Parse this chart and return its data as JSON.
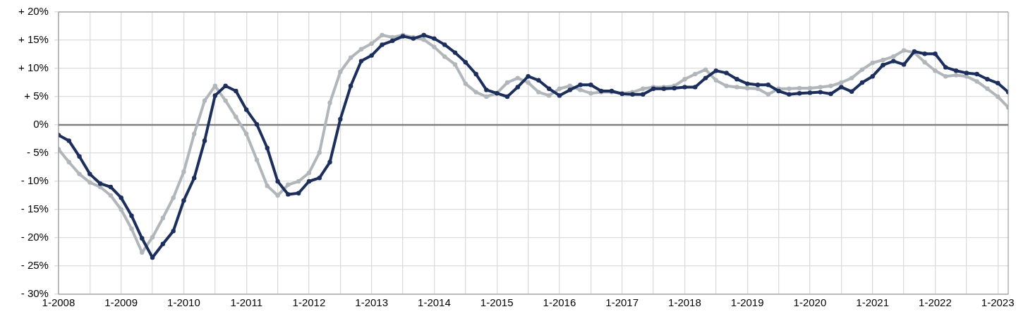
{
  "chart_data": {
    "type": "line",
    "x": [
      "2008-01",
      "2008-03",
      "2008-05",
      "2008-07",
      "2008-09",
      "2008-11",
      "2009-01",
      "2009-03",
      "2009-05",
      "2009-07",
      "2009-09",
      "2009-11",
      "2010-01",
      "2010-03",
      "2010-05",
      "2010-07",
      "2010-09",
      "2010-11",
      "2011-01",
      "2011-03",
      "2011-05",
      "2011-07",
      "2011-09",
      "2011-11",
      "2012-01",
      "2012-03",
      "2012-05",
      "2012-07",
      "2012-09",
      "2012-11",
      "2013-01",
      "2013-03",
      "2013-05",
      "2013-07",
      "2013-09",
      "2013-11",
      "2014-01",
      "2014-03",
      "2014-05",
      "2014-07",
      "2014-09",
      "2014-11",
      "2015-01",
      "2015-03",
      "2015-05",
      "2015-07",
      "2015-09",
      "2015-11",
      "2016-01",
      "2016-03",
      "2016-05",
      "2016-07",
      "2016-09",
      "2016-11",
      "2017-01",
      "2017-03",
      "2017-05",
      "2017-07",
      "2017-09",
      "2017-11",
      "2018-01",
      "2018-03",
      "2018-05",
      "2018-07",
      "2018-09",
      "2018-11",
      "2019-01",
      "2019-03",
      "2019-05",
      "2019-07",
      "2019-09",
      "2019-11",
      "2020-01",
      "2020-03",
      "2020-05",
      "2020-07",
      "2020-09",
      "2020-11",
      "2021-01",
      "2021-03",
      "2021-05",
      "2021-07",
      "2021-09",
      "2021-11",
      "2022-01",
      "2022-03",
      "2022-05",
      "2022-07",
      "2022-09",
      "2022-11",
      "2023-01",
      "2023-03"
    ],
    "series": [
      {
        "color": "#b1b6bb",
        "values": [
          -4.3,
          -6.6,
          -8.7,
          -10.2,
          -11.0,
          -12.5,
          -15.0,
          -18.4,
          -22.6,
          -19.9,
          -16.5,
          -12.9,
          -8.3,
          -1.6,
          4.3,
          6.9,
          4.3,
          1.4,
          -1.6,
          -6.2,
          -10.8,
          -12.5,
          -10.6,
          -10.0,
          -8.5,
          -4.9,
          3.9,
          9.4,
          11.9,
          13.4,
          14.4,
          15.9,
          15.5,
          15.9,
          15.5,
          15.1,
          13.8,
          12.1,
          10.7,
          7.3,
          5.8,
          5.0,
          5.6,
          7.5,
          8.3,
          7.5,
          5.8,
          5.2,
          6.4,
          6.9,
          6.2,
          5.6,
          5.8,
          5.8,
          5.6,
          5.8,
          6.4,
          6.7,
          6.7,
          6.9,
          8.1,
          9.0,
          9.8,
          7.9,
          6.9,
          6.7,
          6.5,
          6.4,
          5.4,
          6.4,
          6.4,
          6.5,
          6.5,
          6.7,
          6.9,
          7.5,
          8.3,
          9.8,
          11.0,
          11.5,
          12.1,
          13.2,
          12.8,
          11.1,
          9.6,
          8.6,
          8.8,
          8.6,
          7.7,
          6.4,
          5.0,
          3.1
        ]
      },
      {
        "color": "#1c2e5c",
        "values": [
          -1.8,
          -2.8,
          -5.6,
          -8.7,
          -10.4,
          -11.0,
          -12.9,
          -16.1,
          -20.1,
          -23.5,
          -21.1,
          -18.8,
          -13.4,
          -9.4,
          -2.8,
          5.2,
          6.9,
          6.0,
          2.7,
          0.1,
          -4.1,
          -10.0,
          -12.3,
          -12.1,
          -10.0,
          -9.4,
          -6.6,
          1.0,
          6.9,
          11.3,
          12.3,
          14.2,
          14.9,
          15.7,
          15.3,
          15.9,
          15.3,
          14.2,
          12.8,
          11.1,
          9.0,
          6.2,
          5.6,
          5.0,
          6.7,
          8.6,
          7.9,
          6.4,
          5.2,
          6.2,
          7.1,
          7.1,
          6.0,
          6.0,
          5.5,
          5.4,
          5.4,
          6.4,
          6.4,
          6.5,
          6.7,
          6.7,
          8.3,
          9.6,
          9.2,
          8.1,
          7.3,
          7.1,
          7.1,
          6.0,
          5.4,
          5.6,
          5.7,
          5.8,
          5.5,
          6.7,
          5.9,
          7.5,
          8.6,
          10.6,
          11.3,
          10.7,
          13.0,
          12.6,
          12.6,
          10.2,
          9.6,
          9.2,
          9.0,
          8.1,
          7.4,
          5.8
        ]
      }
    ],
    "xlim": [
      "2008-01",
      "2023-03"
    ],
    "xticks": [
      {
        "value": "2008-01",
        "label": "1-2008"
      },
      {
        "value": "2008-07",
        "label": null
      },
      {
        "value": "2009-01",
        "label": "1-2009"
      },
      {
        "value": "2009-07",
        "label": null
      },
      {
        "value": "2010-01",
        "label": "1-2010"
      },
      {
        "value": "2010-07",
        "label": null
      },
      {
        "value": "2011-01",
        "label": "1-2011"
      },
      {
        "value": "2011-07",
        "label": null
      },
      {
        "value": "2012-01",
        "label": "1-2012"
      },
      {
        "value": "2012-07",
        "label": null
      },
      {
        "value": "2013-01",
        "label": "1-2013"
      },
      {
        "value": "2013-07",
        "label": null
      },
      {
        "value": "2014-01",
        "label": "1-2014"
      },
      {
        "value": "2014-07",
        "label": null
      },
      {
        "value": "2015-01",
        "label": "1-2015"
      },
      {
        "value": "2015-07",
        "label": null
      },
      {
        "value": "2016-01",
        "label": "1-2016"
      },
      {
        "value": "2016-07",
        "label": null
      },
      {
        "value": "2017-01",
        "label": "1-2017"
      },
      {
        "value": "2017-07",
        "label": null
      },
      {
        "value": "2018-01",
        "label": "1-2018"
      },
      {
        "value": "2018-07",
        "label": null
      },
      {
        "value": "2019-01",
        "label": "1-2019"
      },
      {
        "value": "2019-07",
        "label": null
      },
      {
        "value": "2020-01",
        "label": "1-2020"
      },
      {
        "value": "2020-07",
        "label": null
      },
      {
        "value": "2021-01",
        "label": "1-2021"
      },
      {
        "value": "2021-07",
        "label": null
      },
      {
        "value": "2022-01",
        "label": "1-2022"
      },
      {
        "value": "2022-07",
        "label": null
      },
      {
        "value": "2023-01",
        "label": "1-2023"
      }
    ],
    "ylim": [
      -30,
      20
    ],
    "yticks": [
      {
        "value": -30,
        "label": "- 30%"
      },
      {
        "value": -25,
        "label": "- 25%"
      },
      {
        "value": -20,
        "label": "- 20%"
      },
      {
        "value": -15,
        "label": "- 15%"
      },
      {
        "value": -10,
        "label": "- 10%"
      },
      {
        "value": -5,
        "label": "- 5%"
      },
      {
        "value": 0,
        "label": "0%"
      },
      {
        "value": 5,
        "label": "+ 5%"
      },
      {
        "value": 10,
        "label": "+ 10%"
      },
      {
        "value": 15,
        "label": "+ 15%"
      },
      {
        "value": 20,
        "label": "+ 20%"
      }
    ],
    "ref_lines": [
      {
        "axis": "y",
        "value": 0,
        "color": "#808080"
      }
    ],
    "grid": true,
    "legend": false,
    "marker": "circle",
    "line_style": "solid"
  }
}
